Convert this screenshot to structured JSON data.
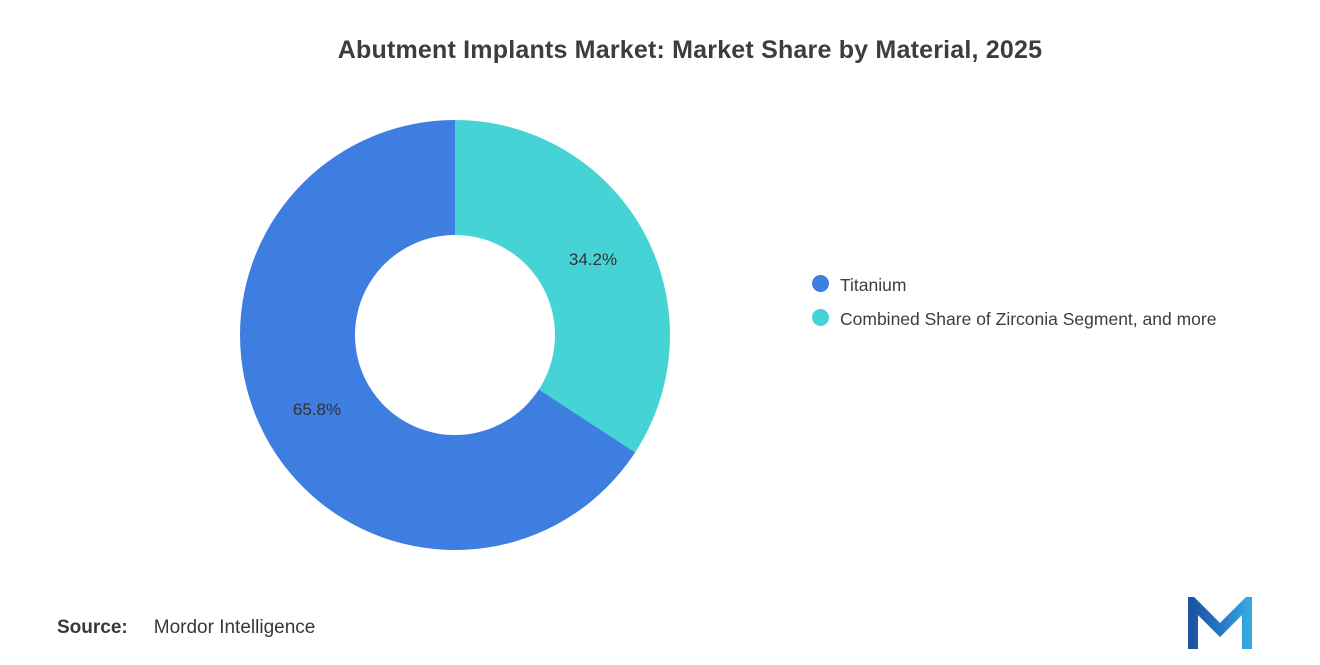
{
  "chart_data": {
    "type": "pie",
    "subtype": "donut",
    "title": "Abutment Implants Market: Market Share by Material, 2025",
    "series": [
      {
        "name": "Titanium",
        "value": 65.8,
        "label": "65.8%",
        "color": "#3e7ee0"
      },
      {
        "name": "Combined Share of Zirconia Segment, and more",
        "value": 34.2,
        "label": "34.2%",
        "color": "#46d3d5"
      }
    ],
    "start": "top",
    "clockwise_order": [
      "Combined Share of Zirconia Segment, and more",
      "Titanium"
    ],
    "inner_radius_ratio": 0.465,
    "label_radius_ratio": 0.73,
    "legend_position": "right",
    "label_color": "#333333"
  },
  "legend": {
    "items": [
      {
        "label": "Titanium",
        "color": "#3e7ee0"
      },
      {
        "label": "Combined Share of Zirconia Segment, and more",
        "color": "#46d3d5"
      }
    ]
  },
  "source": {
    "prefix": "Source:",
    "text": "Mordor Intelligence"
  },
  "logo": {
    "name": "mordor-intelligence-logo"
  }
}
